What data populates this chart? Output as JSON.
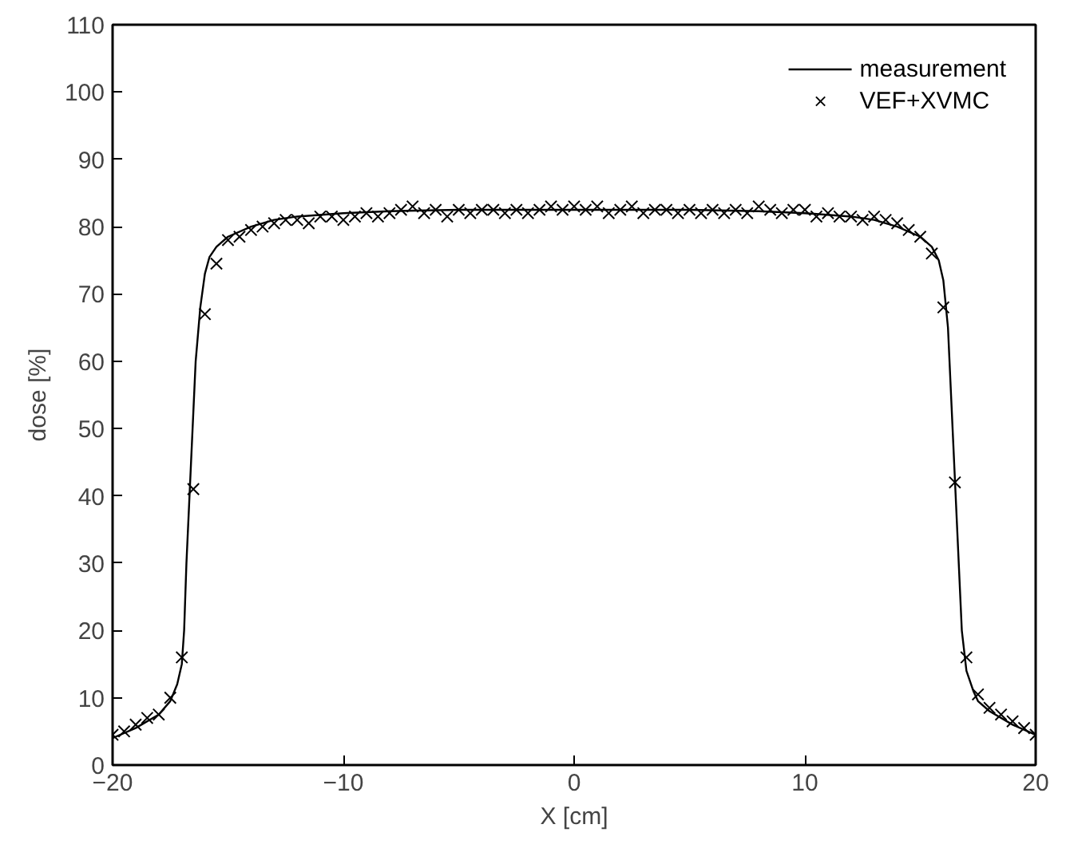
{
  "chart_data": {
    "type": "line",
    "xlabel": "X [cm]",
    "ylabel": "dose [%]",
    "xlim": [
      -20,
      20
    ],
    "ylim": [
      0,
      110
    ],
    "xticks": [
      {
        "value": -20,
        "label": "−20"
      },
      {
        "value": -10,
        "label": "−10"
      },
      0,
      10,
      20
    ],
    "yticks": [
      0,
      10,
      20,
      30,
      40,
      50,
      60,
      70,
      80,
      90,
      100,
      110
    ],
    "grid": false,
    "legend": "top right",
    "series": [
      {
        "name": "measurement",
        "color": "#000000",
        "marker": "none",
        "line_style": "solid",
        "x": [
          -20,
          -19,
          -18,
          -17.5,
          -17.2,
          -17,
          -16.9,
          -16.8,
          -16.6,
          -16.4,
          -16.2,
          -16,
          -15.8,
          -15.5,
          -15,
          -14,
          -13,
          -12,
          -10,
          -8,
          -5,
          0,
          5,
          8,
          10,
          12,
          13,
          14,
          15,
          15.5,
          15.8,
          16,
          16.2,
          16.4,
          16.6,
          16.8,
          17,
          17.3,
          17.5,
          18,
          19,
          20
        ],
        "values": [
          4,
          5.5,
          7.5,
          9.5,
          12,
          15,
          20,
          30,
          45,
          60,
          68,
          73,
          75.5,
          77,
          78.5,
          80,
          81,
          81.5,
          82,
          82.3,
          82.5,
          82.5,
          82.5,
          82.3,
          82,
          81.5,
          81,
          80,
          78.5,
          77,
          75,
          72,
          65,
          50,
          35,
          20,
          14,
          11,
          9.5,
          8,
          6,
          4.5
        ]
      },
      {
        "name": "VEF+XVMC",
        "type": "scatter",
        "color": "#000000",
        "marker": "cross",
        "x": [
          -20,
          -19.5,
          -19,
          -18.5,
          -18,
          -17.5,
          -17,
          -16.5,
          -16,
          -15.5,
          -15,
          -14.5,
          -14,
          -13.5,
          -13,
          -12.5,
          -12,
          -11.5,
          -11,
          -10.5,
          -10,
          -9.5,
          -9,
          -8.5,
          -8,
          -7.5,
          -7,
          -6.5,
          -6,
          -5.5,
          -5,
          -4.5,
          -4,
          -3.5,
          -3,
          -2.5,
          -2,
          -1.5,
          -1,
          -0.5,
          0,
          0.5,
          1,
          1.5,
          2,
          2.5,
          3,
          3.5,
          4,
          4.5,
          5,
          5.5,
          6,
          6.5,
          7,
          7.5,
          8,
          8.5,
          9,
          9.5,
          10,
          10.5,
          11,
          11.5,
          12,
          12.5,
          13,
          13.5,
          14,
          14.5,
          15,
          15.5,
          16,
          16.5,
          17,
          17.5,
          18,
          18.5,
          19,
          19.5,
          20
        ],
        "values": [
          4.5,
          5,
          6,
          7,
          7.5,
          10,
          16,
          41,
          67,
          74.5,
          78,
          78.5,
          79.5,
          80,
          80.5,
          81,
          81,
          80.5,
          81.5,
          81.5,
          81,
          81.5,
          82,
          81.5,
          82,
          82.5,
          83,
          82,
          82.5,
          81.5,
          82.5,
          82,
          82.5,
          82.5,
          82,
          82.5,
          82,
          82.5,
          83,
          82.5,
          83,
          82.5,
          83,
          82,
          82.5,
          83,
          82,
          82.5,
          82.5,
          82,
          82.5,
          82,
          82.5,
          82,
          82.5,
          82,
          83,
          82.5,
          82,
          82.5,
          82.5,
          81.5,
          82,
          81.5,
          81.5,
          81,
          81.5,
          81,
          80.5,
          79.5,
          78.5,
          76,
          68,
          42,
          16,
          10.5,
          8.5,
          7.5,
          6.5,
          5.5,
          4.5
        ]
      }
    ]
  }
}
